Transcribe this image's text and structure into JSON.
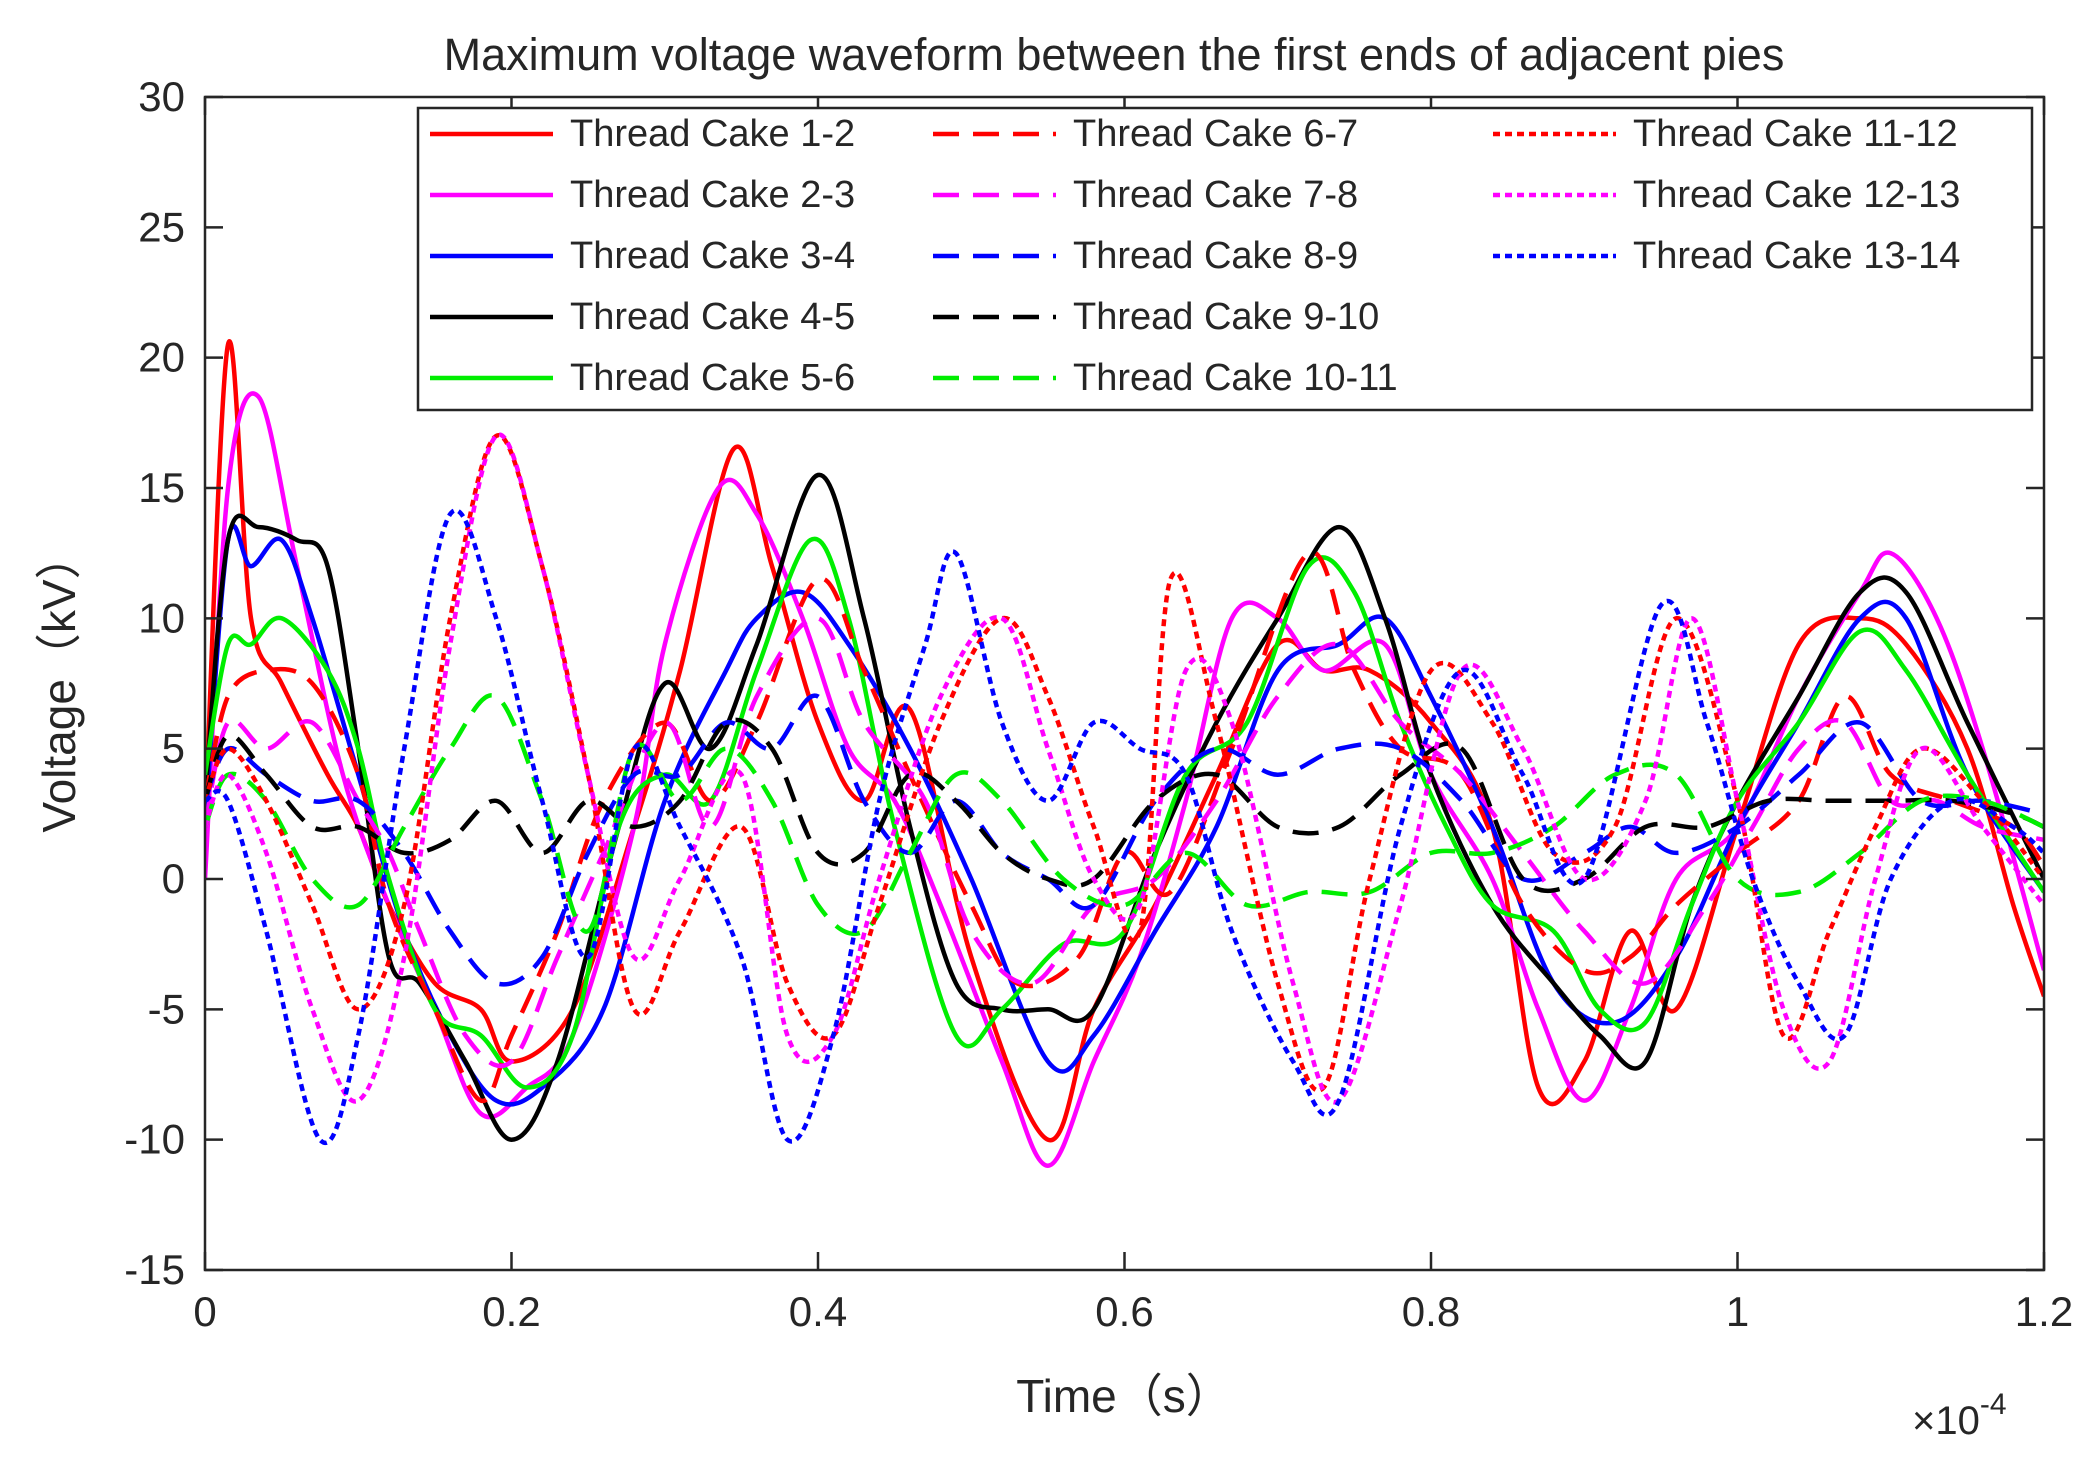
{
  "chart_data": {
    "type": "line",
    "title": "Maximum voltage waveform between the first ends of adjacent pies",
    "xlabel": "Time（s）",
    "ylabel": "Voltage（kV）",
    "x_exponent_base": "×10",
    "x_exponent_power": "-4",
    "xlim": [
      0,
      1.2
    ],
    "ylim": [
      -15,
      30
    ],
    "x_ticks": [
      "0",
      "0.2",
      "0.4",
      "0.6",
      "0.8",
      "1",
      "1.2"
    ],
    "y_ticks": [
      "30",
      "25",
      "20",
      "15",
      "10",
      "5",
      "0",
      "-5",
      "-10",
      "-15"
    ],
    "grid": false,
    "legend_position": "top-right",
    "series": [
      {
        "name": "Thread Cake 1-2",
        "color": "#ff0000",
        "style": "solid",
        "x": [
          0,
          0.015,
          0.03,
          0.05,
          0.08,
          0.1,
          0.12,
          0.15,
          0.18,
          0.2,
          0.24,
          0.28,
          0.31,
          0.345,
          0.37,
          0.4,
          0.43,
          0.46,
          0.5,
          0.55,
          0.58,
          0.62,
          0.66,
          0.7,
          0.73,
          0.76,
          0.8,
          0.84,
          0.87,
          0.9,
          0.93,
          0.96,
          1.0,
          1.04,
          1.08,
          1.11,
          1.15,
          1.18,
          1.2
        ],
        "y": [
          2,
          20.5,
          10,
          7.5,
          4,
          2,
          -1,
          -4,
          -5,
          -7,
          -5,
          2,
          8,
          16.5,
          12,
          6,
          3,
          6.5,
          -3,
          -10,
          -5,
          -1,
          4,
          9,
          8,
          8,
          6,
          2,
          -8,
          -7,
          -2,
          -5,
          2,
          9,
          10,
          9,
          5,
          -1,
          -4.5
        ]
      },
      {
        "name": "Thread Cake 2-3",
        "color": "#ff00ff",
        "style": "solid",
        "x": [
          0,
          0.015,
          0.035,
          0.06,
          0.09,
          0.12,
          0.15,
          0.18,
          0.21,
          0.24,
          0.28,
          0.3,
          0.335,
          0.36,
          0.39,
          0.42,
          0.45,
          0.48,
          0.52,
          0.55,
          0.58,
          0.61,
          0.64,
          0.67,
          0.7,
          0.73,
          0.77,
          0.8,
          0.84,
          0.87,
          0.9,
          0.93,
          0.96,
          1.0,
          1.04,
          1.08,
          1.1,
          1.13,
          1.16,
          1.2
        ],
        "y": [
          0,
          15,
          18.5,
          12,
          4,
          -1,
          -5,
          -9,
          -8,
          -6,
          2,
          9,
          15,
          14,
          10,
          5,
          3,
          -1,
          -7,
          -11,
          -7,
          -3,
          3,
          10,
          10,
          8,
          9,
          4,
          0,
          -5,
          -8.5,
          -5,
          0,
          2,
          7,
          11,
          12.5,
          10,
          5,
          -3.5
        ]
      },
      {
        "name": "Thread Cake 3-4",
        "color": "#0000ff",
        "style": "solid",
        "x": [
          0,
          0.015,
          0.03,
          0.05,
          0.07,
          0.1,
          0.13,
          0.16,
          0.19,
          0.22,
          0.26,
          0.3,
          0.34,
          0.36,
          0.39,
          0.42,
          0.46,
          0.5,
          0.55,
          0.58,
          0.62,
          0.66,
          0.7,
          0.74,
          0.77,
          0.8,
          0.84,
          0.88,
          0.92,
          0.96,
          1.0,
          1.04,
          1.08,
          1.11,
          1.15,
          1.2
        ],
        "y": [
          2,
          13,
          12,
          13,
          10,
          4,
          -2,
          -6,
          -8.5,
          -8,
          -5,
          3,
          8,
          10,
          11,
          9,
          5,
          0,
          -7,
          -6,
          -2,
          2,
          8,
          9,
          10,
          7,
          2,
          -4,
          -5.5,
          -3,
          2,
          6,
          10,
          10,
          4,
          -0.5
        ]
      },
      {
        "name": "Thread Cake 4-5",
        "color": "#000000",
        "style": "solid",
        "x": [
          0,
          0.015,
          0.035,
          0.06,
          0.08,
          0.1,
          0.12,
          0.14,
          0.17,
          0.2,
          0.23,
          0.27,
          0.3,
          0.33,
          0.36,
          0.4,
          0.43,
          0.46,
          0.49,
          0.52,
          0.55,
          0.58,
          0.62,
          0.66,
          0.7,
          0.74,
          0.77,
          0.8,
          0.84,
          0.88,
          0.91,
          0.94,
          0.97,
          1.0,
          1.04,
          1.08,
          1.11,
          1.15,
          1.2
        ],
        "y": [
          3,
          13,
          13.5,
          13,
          12,
          5,
          -3,
          -4,
          -7,
          -10,
          -7,
          2,
          7.5,
          5,
          9,
          15.5,
          10,
          2,
          -4,
          -5,
          -5,
          -5,
          1,
          6,
          10,
          13.5,
          10,
          4,
          -1,
          -4,
          -6,
          -7,
          -1,
          3,
          7,
          11,
          11,
          6,
          0
        ]
      },
      {
        "name": "Thread Cake 5-6",
        "color": "#00ee00",
        "style": "solid",
        "x": [
          0,
          0.015,
          0.03,
          0.05,
          0.08,
          0.1,
          0.12,
          0.15,
          0.18,
          0.21,
          0.24,
          0.27,
          0.3,
          0.33,
          0.36,
          0.395,
          0.42,
          0.45,
          0.49,
          0.52,
          0.56,
          0.6,
          0.64,
          0.68,
          0.72,
          0.75,
          0.78,
          0.81,
          0.84,
          0.88,
          0.91,
          0.94,
          0.97,
          1.0,
          1.04,
          1.08,
          1.11,
          1.15,
          1.2
        ],
        "y": [
          4,
          9,
          9,
          10,
          8,
          5,
          0,
          -5,
          -6,
          -8,
          -6,
          2,
          4,
          3,
          8,
          13,
          10,
          2,
          -6,
          -5,
          -2.5,
          -2,
          4,
          6,
          12,
          11,
          6,
          2,
          -1,
          -2,
          -5,
          -5.5,
          -1,
          3,
          6,
          9.5,
          8,
          4,
          -0.5
        ]
      },
      {
        "name": "Thread Cake 6-7",
        "color": "#ff0000",
        "style": "dashed",
        "x": [
          0,
          0.015,
          0.04,
          0.07,
          0.1,
          0.12,
          0.15,
          0.18,
          0.2,
          0.23,
          0.26,
          0.3,
          0.33,
          0.36,
          0.4,
          0.43,
          0.46,
          0.5,
          0.53,
          0.57,
          0.6,
          0.63,
          0.67,
          0.72,
          0.75,
          0.78,
          0.82,
          0.86,
          0.9,
          0.93,
          0.96,
          1.0,
          1.04,
          1.07,
          1.1,
          1.14,
          1.18,
          1.2
        ],
        "y": [
          3,
          7,
          8,
          7.5,
          4,
          -1,
          -5,
          -8.5,
          -6,
          -2,
          3,
          6,
          3,
          6,
          11.5,
          8,
          4,
          -1,
          -4,
          -3,
          1,
          -0.5,
          5,
          12.5,
          8,
          5,
          4,
          -1,
          -3.5,
          -3,
          -1,
          1,
          3,
          7,
          4,
          3,
          2,
          0.5
        ]
      },
      {
        "name": "Thread Cake 7-8",
        "color": "#ff00ff",
        "style": "dashed",
        "x": [
          0,
          0.015,
          0.04,
          0.07,
          0.1,
          0.12,
          0.14,
          0.17,
          0.2,
          0.23,
          0.26,
          0.3,
          0.33,
          0.36,
          0.4,
          0.43,
          0.47,
          0.5,
          0.54,
          0.58,
          0.62,
          0.66,
          0.7,
          0.74,
          0.78,
          0.82,
          0.86,
          0.9,
          0.94,
          0.98,
          1.01,
          1.04,
          1.07,
          1.1,
          1.13,
          1.16,
          1.2
        ],
        "y": [
          2,
          6,
          5,
          6,
          3,
          1,
          -2,
          -6,
          -7,
          -3,
          1,
          6,
          2,
          7,
          10,
          6,
          3,
          -2,
          -4,
          -1,
          0,
          3,
          7,
          9,
          6,
          4,
          1,
          -2,
          -4,
          -1,
          2,
          5,
          6,
          3,
          3,
          2,
          1.5
        ]
      },
      {
        "name": "Thread Cake 8-9",
        "color": "#0000ff",
        "style": "dashed",
        "x": [
          0,
          0.015,
          0.04,
          0.07,
          0.1,
          0.13,
          0.16,
          0.19,
          0.22,
          0.25,
          0.28,
          0.31,
          0.34,
          0.37,
          0.4,
          0.43,
          0.46,
          0.49,
          0.52,
          0.55,
          0.58,
          0.62,
          0.66,
          0.7,
          0.74,
          0.78,
          0.82,
          0.86,
          0.9,
          0.93,
          0.96,
          1.0,
          1.04,
          1.08,
          1.12,
          1.16,
          1.2
        ],
        "y": [
          3,
          5,
          4,
          3,
          3,
          1,
          -2,
          -4,
          -3,
          1,
          4,
          4,
          6,
          5,
          7,
          3,
          1,
          3,
          1,
          0,
          -1,
          3,
          5,
          4,
          5,
          5,
          3,
          0,
          1,
          2,
          1,
          2,
          4,
          6,
          3,
          3,
          2.5
        ]
      },
      {
        "name": "Thread Cake 9-10",
        "color": "#000000",
        "style": "dashed",
        "x": [
          0,
          0.015,
          0.04,
          0.07,
          0.1,
          0.13,
          0.16,
          0.19,
          0.22,
          0.25,
          0.28,
          0.31,
          0.34,
          0.37,
          0.4,
          0.43,
          0.46,
          0.49,
          0.52,
          0.55,
          0.58,
          0.62,
          0.66,
          0.7,
          0.74,
          0.78,
          0.82,
          0.86,
          0.9,
          0.94,
          0.98,
          1.02,
          1.06,
          1.1,
          1.14,
          1.18,
          1.2
        ],
        "y": [
          3,
          5.5,
          4,
          2,
          2,
          1,
          1.5,
          3,
          1,
          3,
          2,
          3,
          6,
          5,
          1,
          1,
          4,
          3,
          1,
          0,
          0,
          3,
          4,
          2,
          2,
          4,
          5,
          0,
          0,
          2,
          2,
          3,
          3,
          3,
          3,
          2.5,
          2
        ]
      },
      {
        "name": "Thread Cake 10-11",
        "color": "#00ee00",
        "style": "dashed",
        "x": [
          0,
          0.015,
          0.04,
          0.07,
          0.1,
          0.13,
          0.16,
          0.19,
          0.22,
          0.25,
          0.28,
          0.31,
          0.34,
          0.37,
          0.4,
          0.43,
          0.46,
          0.49,
          0.52,
          0.56,
          0.6,
          0.64,
          0.68,
          0.72,
          0.76,
          0.8,
          0.84,
          0.88,
          0.92,
          0.96,
          1.0,
          1.04,
          1.08,
          1.12,
          1.16,
          1.2
        ],
        "y": [
          2,
          4,
          3,
          0,
          -1,
          2,
          5,
          7,
          3,
          -2,
          5,
          3,
          5,
          3,
          -1,
          -2,
          1,
          4,
          3,
          0,
          -1,
          1,
          -1,
          -0.5,
          -0.5,
          1,
          1,
          2,
          4,
          4,
          0,
          -0.5,
          1,
          3,
          3,
          2
        ]
      },
      {
        "name": "Thread Cake 11-12",
        "color": "#ff0000",
        "style": "dotted",
        "x": [
          0,
          0.015,
          0.04,
          0.07,
          0.1,
          0.13,
          0.16,
          0.19,
          0.22,
          0.25,
          0.28,
          0.31,
          0.35,
          0.38,
          0.41,
          0.44,
          0.48,
          0.52,
          0.55,
          0.58,
          0.61,
          0.63,
          0.66,
          0.7,
          0.73,
          0.76,
          0.8,
          0.84,
          0.88,
          0.92,
          0.96,
          1.0,
          1.03,
          1.06,
          1.09,
          1.12,
          1.16,
          1.2
        ],
        "y": [
          3,
          5,
          3,
          -1,
          -5,
          -1,
          10,
          17,
          12,
          4,
          -5,
          -2,
          2,
          -4,
          -6,
          -1,
          6,
          10,
          7,
          2,
          -2,
          11.5,
          6,
          -4,
          -8,
          0,
          8,
          6,
          1,
          2,
          10,
          3,
          -6,
          -2,
          2,
          5,
          3,
          0
        ]
      },
      {
        "name": "Thread Cake 12-13",
        "color": "#ff00ff",
        "style": "dotted",
        "x": [
          0,
          0.015,
          0.04,
          0.07,
          0.1,
          0.13,
          0.16,
          0.19,
          0.22,
          0.25,
          0.28,
          0.31,
          0.35,
          0.38,
          0.41,
          0.44,
          0.48,
          0.52,
          0.55,
          0.58,
          0.61,
          0.64,
          0.67,
          0.71,
          0.74,
          0.78,
          0.82,
          0.86,
          0.9,
          0.94,
          0.97,
          1.0,
          1.03,
          1.06,
          1.09,
          1.12,
          1.16,
          1.2
        ],
        "y": [
          2,
          4,
          1,
          -5,
          -8.5,
          -3,
          9,
          17,
          12,
          4,
          -3,
          0,
          4,
          -6,
          -6,
          0,
          7,
          10,
          5,
          0,
          -1,
          8,
          6,
          -4,
          -8.5,
          -1,
          8,
          5,
          0,
          3,
          10,
          3,
          -5,
          -7,
          0,
          5,
          2,
          -1
        ]
      },
      {
        "name": "Thread Cake 13-14",
        "color": "#0000ff",
        "style": "dotted",
        "x": [
          0,
          0.015,
          0.04,
          0.075,
          0.1,
          0.13,
          0.16,
          0.19,
          0.22,
          0.25,
          0.28,
          0.31,
          0.35,
          0.38,
          0.41,
          0.44,
          0.47,
          0.49,
          0.52,
          0.55,
          0.58,
          0.61,
          0.64,
          0.67,
          0.71,
          0.74,
          0.78,
          0.82,
          0.86,
          0.9,
          0.95,
          0.98,
          1.01,
          1.04,
          1.07,
          1.1,
          1.14,
          1.18,
          1.2
        ],
        "y": [
          3,
          3,
          -2,
          -10,
          -6,
          5,
          14,
          10,
          3,
          -3,
          5,
          2,
          -3,
          -10,
          -6,
          3,
          9,
          12.5,
          6,
          3,
          6,
          5,
          4,
          -2,
          -7,
          -8.5,
          2,
          8,
          4,
          0,
          10.5,
          6,
          0,
          -4,
          -6,
          0,
          3,
          2,
          1
        ]
      }
    ]
  }
}
